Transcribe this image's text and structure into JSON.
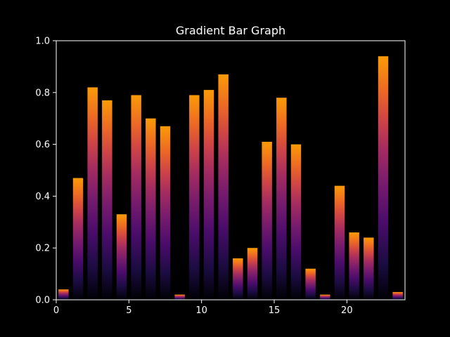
{
  "chart_data": {
    "type": "bar",
    "title": "Gradient Bar Graph",
    "xlabel": "",
    "ylabel": "",
    "xlim": [
      0,
      24
    ],
    "ylim": [
      0,
      1.0
    ],
    "xticks": [
      0,
      5,
      10,
      15,
      20
    ],
    "xtick_labels": [
      "0",
      "5",
      "10",
      "15",
      "20"
    ],
    "yticks": [
      0,
      0.2,
      0.4,
      0.6,
      0.8,
      1.0
    ],
    "ytick_labels": [
      "0.0",
      "0.2",
      "0.4",
      "0.6",
      "0.8",
      "1.0"
    ],
    "bar_width": 0.7,
    "x": [
      0.5,
      1.5,
      2.5,
      3.5,
      4.5,
      5.5,
      6.5,
      7.5,
      8.5,
      9.5,
      10.5,
      11.5,
      12.5,
      13.5,
      14.5,
      15.5,
      16.5,
      17.5,
      18.5,
      19.5,
      20.5,
      21.5,
      22.5,
      23.5
    ],
    "values": [
      0.04,
      0.47,
      0.82,
      0.77,
      0.33,
      0.79,
      0.7,
      0.67,
      0.02,
      0.79,
      0.81,
      0.87,
      0.16,
      0.2,
      0.61,
      0.78,
      0.6,
      0.12,
      0.02,
      0.44,
      0.26,
      0.24,
      0.94,
      0.03
    ],
    "grid": false,
    "colormap": "inferno",
    "background_color": "#000000",
    "foreground_color": "#ffffff"
  }
}
